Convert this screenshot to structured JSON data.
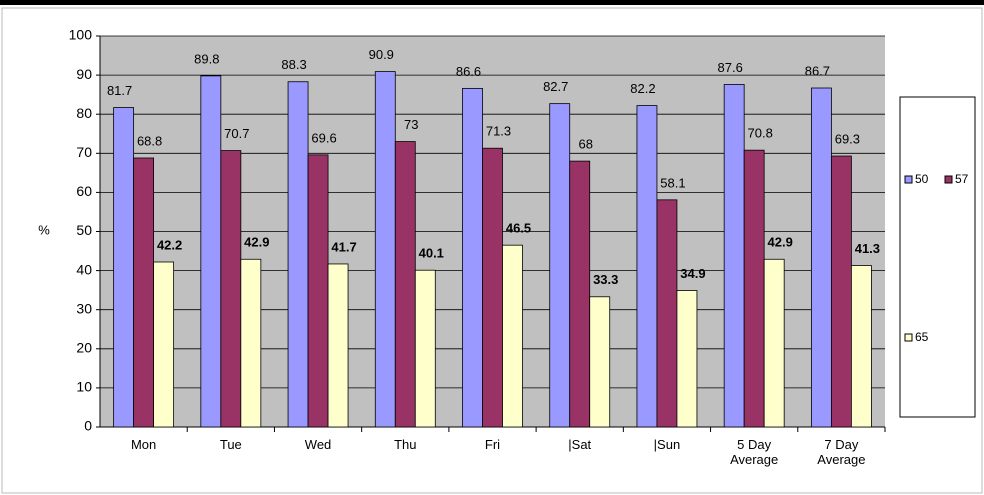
{
  "chart_data": {
    "type": "bar",
    "ylabel": "%",
    "categories": [
      "Mon",
      "Tue",
      "Wed",
      "Thu",
      "Fri",
      "|Sat",
      "|Sun",
      "5 Day Average",
      "7 Day Average"
    ],
    "series": [
      {
        "name": "50",
        "color": "#9999ff",
        "values": [
          81.7,
          89.8,
          88.3,
          90.9,
          86.6,
          82.7,
          82.2,
          87.6,
          86.7
        ]
      },
      {
        "name": "57",
        "color": "#993366",
        "values": [
          68.8,
          70.7,
          69.6,
          73,
          71.3,
          68,
          58.1,
          70.8,
          69.3
        ]
      },
      {
        "name": "65",
        "color": "#ffffcc",
        "values": [
          42.2,
          42.9,
          41.7,
          40.1,
          46.5,
          33.3,
          34.9,
          42.9,
          41.3
        ]
      }
    ],
    "ylim": [
      0,
      100
    ],
    "yticks": [
      0,
      10,
      20,
      30,
      40,
      50,
      60,
      70,
      80,
      90,
      100
    ],
    "grid": true
  }
}
